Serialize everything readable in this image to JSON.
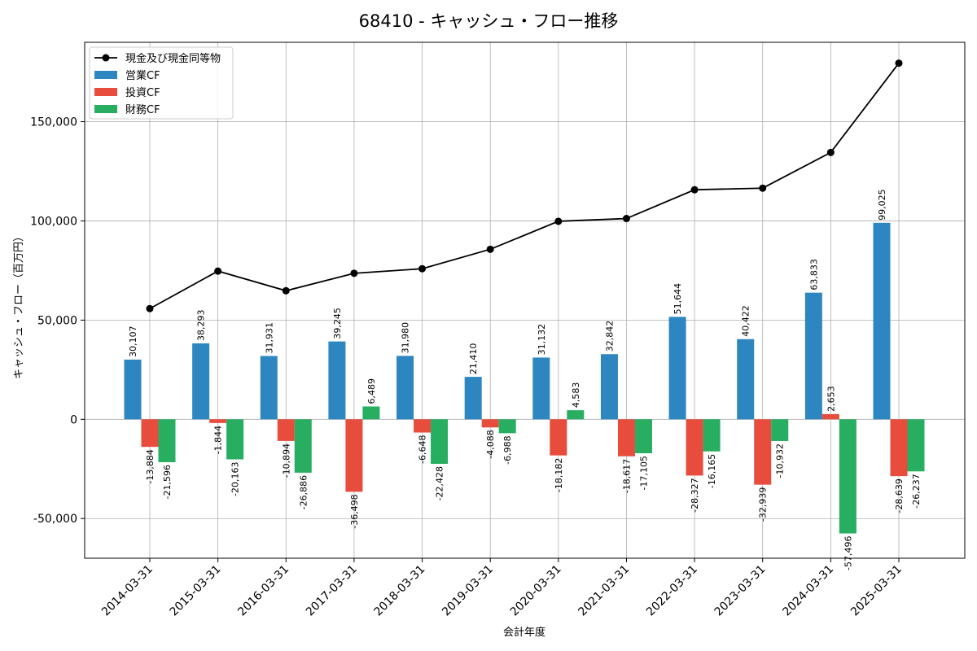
{
  "chart_data": {
    "type": "bar",
    "title": "68410 - キャッシュ・フロー推移",
    "xlabel": "会計年度",
    "ylabel": "キャッシュ・フロー（百万円）",
    "categories": [
      "2014-03-31",
      "2015-03-31",
      "2016-03-31",
      "2017-03-31",
      "2018-03-31",
      "2019-03-31",
      "2020-03-31",
      "2021-03-31",
      "2022-03-31",
      "2023-03-31",
      "2024-03-31",
      "2025-03-31"
    ],
    "ylim": [
      -70000,
      190000
    ],
    "yticks": [
      -50000,
      0,
      50000,
      100000,
      150000
    ],
    "ytick_labels": [
      "-50,000",
      "0",
      "50,000",
      "100,000",
      "150,000"
    ],
    "grid": true,
    "legend_position": "top-left",
    "series": [
      {
        "name": "営業CF",
        "kind": "bar",
        "color": "#2e86c1",
        "values": [
          30107,
          38293,
          31931,
          39245,
          31980,
          21410,
          31132,
          32842,
          51644,
          40422,
          63833,
          99025
        ],
        "labels": [
          "30,107",
          "38,293",
          "31,931",
          "39,245",
          "31,980",
          "21,410",
          "31,132",
          "32,842",
          "51,644",
          "40,422",
          "63,833",
          "99,025"
        ]
      },
      {
        "name": "投資CF",
        "kind": "bar",
        "color": "#e74c3c",
        "values": [
          -13884,
          -1844,
          -10894,
          -36498,
          -6648,
          -4088,
          -18182,
          -18617,
          -28327,
          -32939,
          2653,
          -28639
        ],
        "labels": [
          "-13,884",
          "-1,844",
          "-10,894",
          "-36,498",
          "-6,648",
          "-4,088",
          "-18,182",
          "-18,617",
          "-28,327",
          "-32,939",
          "2,653",
          "-28,639"
        ]
      },
      {
        "name": "財務CF",
        "kind": "bar",
        "color": "#27ae60",
        "values": [
          -21596,
          -20163,
          -26886,
          6489,
          -22428,
          -6988,
          4583,
          -17105,
          -16165,
          -10932,
          -57496,
          -26237
        ],
        "labels": [
          "-21,596",
          "-20,163",
          "-26,886",
          "6,489",
          "-22,428",
          "-6,988",
          "4,583",
          "-17,105",
          "-16,165",
          "-10,932",
          "-57,496",
          "-26,237"
        ]
      },
      {
        "name": "現金及び現金同等物",
        "kind": "line",
        "color": "#000000",
        "values": [
          55800,
          74700,
          64800,
          73600,
          75900,
          85700,
          99800,
          101200,
          115700,
          116500,
          134500,
          179500
        ]
      }
    ]
  }
}
